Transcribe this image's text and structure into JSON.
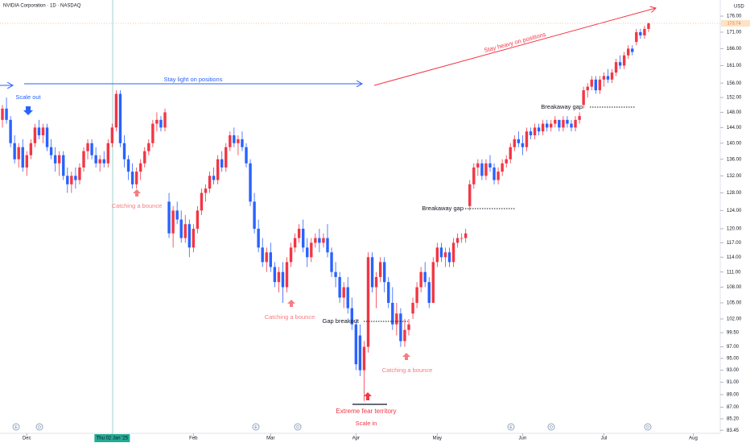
{
  "chart_data": {
    "type": "candlestick",
    "title": "NVIDIA Corporation · 1D · NASDAQ",
    "currency": "USD",
    "up_color": "#f23645",
    "down_color": "#2962ff",
    "log_scale": true,
    "ylim": [
      83.0,
      181.2
    ],
    "yticks": [
      {
        "value": 176,
        "label": "176.00"
      },
      {
        "value": 171,
        "label": "171.00"
      },
      {
        "value": 166,
        "label": "166.00"
      },
      {
        "value": 161,
        "label": "161.00"
      },
      {
        "value": 156,
        "label": "156.00"
      },
      {
        "value": 152,
        "label": "152.00"
      },
      {
        "value": 148,
        "label": "148.00"
      },
      {
        "value": 144,
        "label": "144.00"
      },
      {
        "value": 140,
        "label": "140.00"
      },
      {
        "value": 136,
        "label": "136.00"
      },
      {
        "value": 132,
        "label": "132.00"
      },
      {
        "value": 128,
        "label": "128.00"
      },
      {
        "value": 124,
        "label": "124.00"
      },
      {
        "value": 120,
        "label": "120.00"
      },
      {
        "value": 117,
        "label": "117.00"
      },
      {
        "value": 114,
        "label": "114.00"
      },
      {
        "value": 111,
        "label": "111.00"
      },
      {
        "value": 108,
        "label": "108.00"
      },
      {
        "value": 105,
        "label": "105.00"
      },
      {
        "value": 102,
        "label": "102.00"
      },
      {
        "value": 99.5,
        "label": "99.50"
      },
      {
        "value": 97,
        "label": "97.00"
      },
      {
        "value": 95,
        "label": "95.00"
      },
      {
        "value": 93,
        "label": "93.00"
      },
      {
        "value": 91,
        "label": "91.00"
      },
      {
        "value": 89,
        "label": "89.00"
      },
      {
        "value": 87,
        "label": "87.00"
      },
      {
        "value": 85.2,
        "label": "85.20"
      },
      {
        "value": 83.45,
        "label": "83.45"
      }
    ],
    "last_price": {
      "value": 173.74,
      "label": "173.74"
    },
    "xticks": [
      {
        "value": 6,
        "label": "Dec"
      },
      {
        "value": 27,
        "label": "Thu 02 Jan '25"
      },
      {
        "value": 47,
        "label": "Feb"
      },
      {
        "value": 66,
        "label": "Mar"
      },
      {
        "value": 87,
        "label": "Apr"
      },
      {
        "value": 107,
        "label": "May"
      },
      {
        "value": 128,
        "label": "Jun"
      },
      {
        "value": 148,
        "label": "Jul"
      },
      {
        "value": 170,
        "label": "Aug"
      }
    ],
    "events": [
      "E",
      "D",
      "E",
      "D",
      "E",
      "D",
      "D"
    ],
    "annotations": [
      "Scale out",
      "Stay light on positions",
      "Stay heavy on positions",
      "Catching a bounce",
      "Catching a bounce",
      "Catching a bounce",
      "Breakaway gap",
      "Breakaway gap",
      "Gap breakout",
      "Extreme fear territory",
      "Scale in"
    ],
    "ohlc": [
      [
        146,
        150,
        144,
        149
      ],
      [
        149,
        152,
        145,
        146
      ],
      [
        146,
        147,
        139,
        140
      ],
      [
        140,
        142,
        135,
        136
      ],
      [
        136,
        140,
        134,
        139
      ],
      [
        139,
        141,
        133,
        134
      ],
      [
        134,
        138,
        132,
        137
      ],
      [
        137,
        141,
        136,
        140
      ],
      [
        140,
        145,
        139,
        144
      ],
      [
        144,
        146,
        141,
        142
      ],
      [
        142,
        145,
        140,
        144
      ],
      [
        144,
        145,
        138,
        139
      ],
      [
        139,
        141,
        136,
        137
      ],
      [
        137,
        139,
        133,
        135
      ],
      [
        135,
        138,
        132,
        137
      ],
      [
        137,
        138,
        131,
        132
      ],
      [
        132,
        134,
        128,
        130
      ],
      [
        130,
        133,
        128,
        132
      ],
      [
        132,
        134,
        129,
        131
      ],
      [
        131,
        135,
        130,
        134
      ],
      [
        134,
        139,
        133,
        138
      ],
      [
        138,
        141,
        136,
        140
      ],
      [
        140,
        141,
        136,
        137
      ],
      [
        137,
        139,
        134,
        135
      ],
      [
        135,
        137,
        133,
        136
      ],
      [
        136,
        138,
        134,
        135
      ],
      [
        135,
        141,
        134,
        140
      ],
      [
        140,
        145,
        139,
        144
      ],
      [
        144,
        154,
        143,
        153
      ],
      [
        153,
        154,
        139,
        140
      ],
      [
        140,
        142,
        134,
        136
      ],
      [
        136,
        137,
        131,
        133
      ],
      [
        133,
        135,
        129,
        130
      ],
      [
        130,
        134,
        129,
        133
      ],
      [
        133,
        136,
        131,
        135
      ],
      [
        135,
        139,
        134,
        138
      ],
      [
        138,
        141,
        137,
        140
      ],
      [
        140,
        146,
        139,
        145
      ],
      [
        145,
        148,
        143,
        146
      ],
      [
        146,
        147,
        143,
        144
      ],
      [
        144,
        149,
        143,
        148
      ],
      [
        126,
        128,
        118,
        119
      ],
      [
        119,
        125,
        116,
        124
      ],
      [
        124,
        126,
        121,
        122
      ],
      [
        122,
        124,
        117,
        118
      ],
      [
        118,
        123,
        117,
        121
      ],
      [
        121,
        122,
        114,
        116
      ],
      [
        116,
        121,
        115,
        120
      ],
      [
        120,
        125,
        119,
        124
      ],
      [
        124,
        129,
        123,
        128
      ],
      [
        128,
        130,
        126,
        129
      ],
      [
        129,
        133,
        128,
        132
      ],
      [
        132,
        134,
        130,
        131
      ],
      [
        131,
        137,
        130,
        136
      ],
      [
        136,
        138,
        133,
        134
      ],
      [
        134,
        140,
        133,
        139
      ],
      [
        139,
        143,
        138,
        142
      ],
      [
        142,
        144,
        139,
        140
      ],
      [
        140,
        142,
        137,
        141
      ],
      [
        141,
        143,
        138,
        139
      ],
      [
        139,
        140,
        134,
        135
      ],
      [
        135,
        136,
        125,
        126
      ],
      [
        126,
        128,
        119,
        120
      ],
      [
        120,
        122,
        115,
        116
      ],
      [
        116,
        118,
        112,
        113
      ],
      [
        113,
        116,
        111,
        115
      ],
      [
        115,
        117,
        111,
        112
      ],
      [
        112,
        113,
        108,
        109
      ],
      [
        109,
        112,
        107,
        111
      ],
      [
        111,
        113,
        105,
        108
      ],
      [
        108,
        114,
        107,
        113
      ],
      [
        113,
        117,
        112,
        116
      ],
      [
        116,
        119,
        115,
        118
      ],
      [
        118,
        121,
        117,
        120
      ],
      [
        120,
        122,
        115,
        116
      ],
      [
        116,
        118,
        112,
        114
      ],
      [
        114,
        118,
        113,
        117
      ],
      [
        117,
        119,
        116,
        118
      ],
      [
        118,
        120,
        115,
        117
      ],
      [
        117,
        119,
        116,
        118
      ],
      [
        118,
        121,
        114,
        115
      ],
      [
        115,
        116,
        110,
        111
      ],
      [
        111,
        113,
        108,
        110
      ],
      [
        110,
        111,
        105,
        106
      ],
      [
        106,
        109,
        104,
        108
      ],
      [
        108,
        110,
        103,
        104
      ],
      [
        104,
        106,
        100,
        101
      ],
      [
        101,
        102,
        93,
        94
      ],
      [
        99,
        101,
        92,
        93
      ],
      [
        93,
        98,
        88,
        97
      ],
      [
        97,
        115,
        96,
        114
      ],
      [
        114,
        115,
        107,
        108
      ],
      [
        108,
        111,
        104,
        110
      ],
      [
        110,
        114,
        109,
        113
      ],
      [
        113,
        114,
        107,
        109
      ],
      [
        109,
        110,
        104,
        105
      ],
      [
        105,
        108,
        100,
        101
      ],
      [
        101,
        105,
        99,
        103
      ],
      [
        103,
        104,
        97,
        98
      ],
      [
        98,
        102,
        97,
        100
      ],
      [
        100,
        102,
        99,
        101
      ],
      [
        103,
        106,
        102,
        105
      ],
      [
        105,
        109,
        104,
        108
      ],
      [
        108,
        112,
        107,
        111
      ],
      [
        111,
        113,
        108,
        109
      ],
      [
        109,
        110,
        104,
        105
      ],
      [
        105,
        114,
        105,
        113
      ],
      [
        113,
        117,
        112,
        116
      ],
      [
        116,
        117,
        113,
        114
      ],
      [
        114,
        116,
        112,
        115
      ],
      [
        115,
        116,
        112,
        113
      ],
      [
        113,
        118,
        112,
        117
      ],
      [
        117,
        119,
        116,
        118
      ],
      [
        118,
        119,
        117,
        118
      ],
      [
        118,
        120,
        117,
        119
      ],
      [
        125,
        131,
        124,
        130
      ],
      [
        130,
        135,
        129,
        134
      ],
      [
        134,
        136,
        132,
        135
      ],
      [
        135,
        136,
        131,
        132
      ],
      [
        132,
        136,
        131,
        135
      ],
      [
        135,
        137,
        133,
        134
      ],
      [
        134,
        135,
        130,
        131
      ],
      [
        131,
        134,
        130,
        133
      ],
      [
        133,
        136,
        132,
        135
      ],
      [
        135,
        137,
        134,
        136
      ],
      [
        136,
        140,
        135,
        139
      ],
      [
        139,
        142,
        138,
        141
      ],
      [
        141,
        143,
        139,
        140
      ],
      [
        140,
        142,
        137,
        139
      ],
      [
        139,
        144,
        138,
        143
      ],
      [
        143,
        144,
        141,
        142
      ],
      [
        142,
        145,
        141,
        144
      ],
      [
        144,
        145,
        142,
        143
      ],
      [
        143,
        146,
        142,
        145
      ],
      [
        145,
        146,
        143,
        144
      ],
      [
        144,
        146,
        143,
        145
      ],
      [
        145,
        147,
        144,
        146
      ],
      [
        146,
        146,
        143,
        144
      ],
      [
        144,
        147,
        143,
        146
      ],
      [
        146,
        147,
        144,
        145
      ],
      [
        145,
        146,
        143,
        144
      ],
      [
        144,
        147,
        143,
        146
      ],
      [
        146,
        148,
        145,
        147
      ],
      [
        150,
        155,
        149,
        154
      ],
      [
        154,
        156,
        152,
        155
      ],
      [
        155,
        158,
        154,
        157
      ],
      [
        157,
        158,
        153,
        154
      ],
      [
        154,
        158,
        153,
        157
      ],
      [
        157,
        159,
        155,
        158
      ],
      [
        158,
        160,
        156,
        157
      ],
      [
        157,
        160,
        156,
        159
      ],
      [
        159,
        163,
        158,
        162
      ],
      [
        162,
        164,
        160,
        161
      ],
      [
        161,
        165,
        160,
        164
      ],
      [
        164,
        167,
        163,
        166
      ],
      [
        166,
        167,
        164,
        165
      ],
      [
        168,
        172,
        167,
        171
      ],
      [
        171,
        172,
        169,
        170
      ],
      [
        170,
        173,
        169,
        172
      ],
      [
        172,
        174,
        171,
        173.74
      ]
    ]
  }
}
